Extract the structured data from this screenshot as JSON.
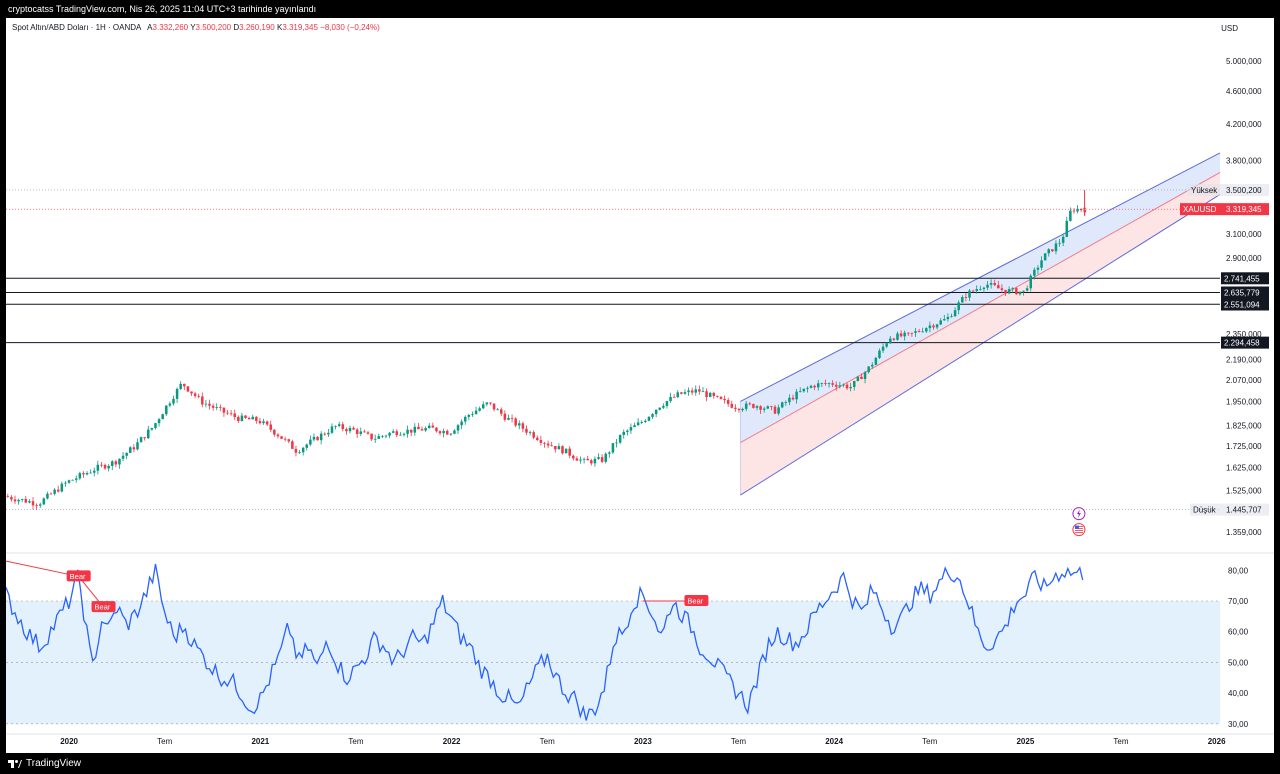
{
  "header": {
    "published_by": "cryptocatss TradingView.com, Nis 26, 2025 11:04 UTC+3 tarihinde yayınlandı"
  },
  "legend": {
    "symbol": "Spot Altın/ABD Doları · 1H · OANDA",
    "o_label": "A",
    "o_value": "3.332,260",
    "h_label": "Y",
    "h_value": "3.500,200",
    "l_label": "D",
    "l_value": "3.260,190",
    "c_label": "K",
    "c_value": "3.319,345",
    "change": "−8,030 (−0,24%)"
  },
  "currency": "USD",
  "footer": {
    "brand": "TradingView"
  },
  "colors": {
    "up": "#089981",
    "down": "#f23645",
    "rsi": "#2962ff",
    "channel_upper_fill": "#dbe5fb",
    "channel_lower_fill": "#fde0e0",
    "channel_line": "#5b6cd9",
    "bear": "#f23645",
    "rsi_band": "#e3f1fc"
  },
  "chart_data": [
    {
      "type": "candlestick",
      "title": "Spot Altın/ABD Doları",
      "ylabel": "USD",
      "y_scale": "log",
      "ylim": [
        1300,
        5300
      ],
      "y_ticks": [
        5000,
        4600,
        4200,
        3800,
        3100,
        2900,
        2350,
        2190,
        2070,
        1950,
        1825,
        1725,
        1625,
        1525,
        1359
      ],
      "y_tick_labels": [
        "5.000,000",
        "4.600,000",
        "4.200,000",
        "3.800,000",
        "3.100,000",
        "2.900,000",
        "2.350,000",
        "2.190,000",
        "2.070,000",
        "1.950,000",
        "1.825,000",
        "1.725,000",
        "1.625,000",
        "1.525,000",
        "1.359,000"
      ],
      "x_tick_labels": [
        "2020",
        "Tem",
        "2021",
        "Tem",
        "2022",
        "Tem",
        "2023",
        "Tem",
        "2024",
        "Tem",
        "2025",
        "Tem",
        "2026"
      ],
      "x_tick_dates": [
        2020.0,
        2020.5,
        2021.0,
        2021.5,
        2022.0,
        2022.5,
        2023.0,
        2023.5,
        2024.0,
        2024.5,
        2025.0,
        2025.5,
        2026.0
      ],
      "x_range": [
        2019.67,
        2026.3
      ],
      "price_path": {
        "dates": [
          2019.67,
          2019.85,
          2020.0,
          2020.15,
          2020.25,
          2020.35,
          2020.45,
          2020.6,
          2020.7,
          2020.8,
          2020.9,
          2021.0,
          2021.1,
          2021.2,
          2021.4,
          2021.5,
          2021.6,
          2021.7,
          2021.8,
          2021.9,
          2022.0,
          2022.1,
          2022.2,
          2022.3,
          2022.4,
          2022.5,
          2022.6,
          2022.7,
          2022.8,
          2022.9,
          2023.0,
          2023.1,
          2023.2,
          2023.3,
          2023.4,
          2023.5,
          2023.6,
          2023.7,
          2023.8,
          2023.9,
          2024.0,
          2024.1,
          2024.2,
          2024.3,
          2024.4,
          2024.5,
          2024.6,
          2024.7,
          2024.8,
          2024.9,
          2025.0,
          2025.1,
          2025.2,
          2025.25,
          2025.32
        ],
        "values": [
          1500,
          1470,
          1560,
          1620,
          1650,
          1720,
          1820,
          2050,
          1950,
          1900,
          1860,
          1850,
          1780,
          1700,
          1820,
          1800,
          1760,
          1790,
          1800,
          1810,
          1790,
          1880,
          1940,
          1860,
          1800,
          1740,
          1700,
          1650,
          1660,
          1780,
          1840,
          1930,
          1990,
          2010,
          1960,
          1920,
          1930,
          1900,
          1980,
          2040,
          2050,
          2030,
          2150,
          2330,
          2340,
          2400,
          2450,
          2620,
          2700,
          2650,
          2640,
          2900,
          3050,
          3320,
          3319
        ]
      },
      "last_price": 3319.345,
      "last_price_label": "XAUUSD",
      "high": {
        "label": "Yüksek",
        "value": "3.500,200"
      },
      "low": {
        "label": "Düşük",
        "value": "1.445,707"
      },
      "horizontal_levels": [
        {
          "value": 2741.455,
          "label": "2.741,455"
        },
        {
          "value": 2635.779,
          "label": "2.635,779"
        },
        {
          "value": 2551.094,
          "label": "2.551,094"
        },
        {
          "value": 2294.458,
          "label": "2.294,458"
        }
      ],
      "regression_channel": {
        "start": 2023.51,
        "end": 2026.14,
        "upper_start": 1950,
        "upper_end": 4010,
        "mid_start": 1740,
        "mid_end": 3810,
        "lower_start": 1505,
        "lower_end": 3600
      }
    },
    {
      "type": "line",
      "title": "RSI",
      "ylim": [
        28,
        84
      ],
      "y_ticks": [
        80,
        70,
        60,
        50,
        40,
        30
      ],
      "y_tick_labels": [
        "80,00",
        "70,00",
        "60,00",
        "50,00",
        "40,00",
        "30,00"
      ],
      "band": [
        30,
        70
      ],
      "series": {
        "dates": [
          2019.67,
          2019.72,
          2019.78,
          2019.85,
          2019.92,
          2020.0,
          2020.05,
          2020.12,
          2020.18,
          2020.2,
          2020.25,
          2020.3,
          2020.35,
          2020.4,
          2020.45,
          2020.5,
          2020.55,
          2020.6,
          2020.65,
          2020.7,
          2020.75,
          2020.8,
          2020.85,
          2020.9,
          2020.95,
          2021.0,
          2021.05,
          2021.1,
          2021.15,
          2021.2,
          2021.25,
          2021.3,
          2021.35,
          2021.4,
          2021.45,
          2021.5,
          2021.55,
          2021.6,
          2021.65,
          2021.7,
          2021.75,
          2021.8,
          2021.85,
          2021.9,
          2021.95,
          2022.0,
          2022.05,
          2022.1,
          2022.15,
          2022.2,
          2022.25,
          2022.3,
          2022.35,
          2022.4,
          2022.45,
          2022.5,
          2022.55,
          2022.6,
          2022.65,
          2022.7,
          2022.75,
          2022.8,
          2022.85,
          2022.9,
          2022.95,
          2023.0,
          2023.05,
          2023.1,
          2023.15,
          2023.2,
          2023.25,
          2023.3,
          2023.35,
          2023.4,
          2023.45,
          2023.5,
          2023.55,
          2023.6,
          2023.65,
          2023.7,
          2023.75,
          2023.8,
          2023.85,
          2023.9,
          2023.95,
          2024.0,
          2024.05,
          2024.1,
          2024.15,
          2024.2,
          2024.25,
          2024.3,
          2024.35,
          2024.4,
          2024.45,
          2024.5,
          2024.55,
          2024.6,
          2024.65,
          2024.7,
          2024.75,
          2024.8,
          2024.85,
          2024.9,
          2024.95,
          2025.0,
          2025.05,
          2025.1,
          2025.15,
          2025.2,
          2025.25,
          2025.3
        ],
        "values": [
          72,
          66,
          60,
          55,
          62,
          70,
          78,
          48,
          66,
          60,
          68,
          62,
          66,
          72,
          80,
          66,
          58,
          62,
          56,
          52,
          48,
          45,
          44,
          40,
          35,
          38,
          45,
          52,
          62,
          50,
          55,
          48,
          58,
          50,
          45,
          48,
          52,
          58,
          55,
          50,
          54,
          58,
          56,
          62,
          70,
          64,
          58,
          55,
          48,
          45,
          40,
          38,
          35,
          42,
          48,
          52,
          45,
          40,
          38,
          32,
          35,
          42,
          58,
          60,
          70,
          72,
          66,
          58,
          70,
          66,
          62,
          55,
          52,
          48,
          44,
          40,
          36,
          45,
          55,
          60,
          58,
          56,
          60,
          66,
          70,
          74,
          78,
          70,
          66,
          74,
          68,
          62,
          64,
          70,
          74,
          72,
          76,
          80,
          78,
          70,
          60,
          55,
          58,
          62,
          70,
          72,
          78,
          74,
          78,
          80,
          79,
          79
        ],
        "bear_labels": [
          {
            "text": "Bear",
            "date": 2020.05,
            "value": 78
          },
          {
            "text": "Bear",
            "date": 2020.18,
            "value": 68
          },
          {
            "text": "Bear",
            "date": 2023.28,
            "value": 70
          }
        ]
      }
    }
  ]
}
